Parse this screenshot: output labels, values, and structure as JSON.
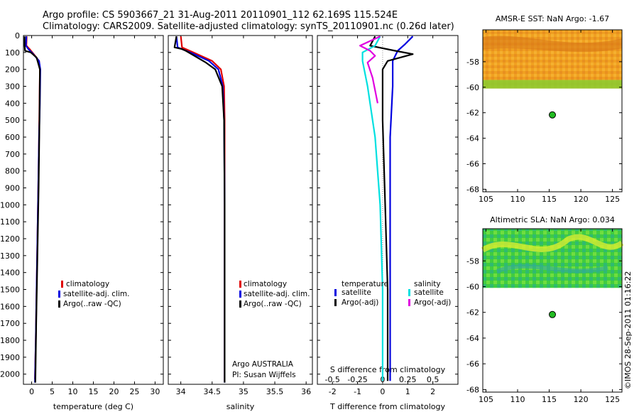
{
  "header": {
    "line1": "Argo profile: CS 5903667_21 31-Aug-2011 20110901_112 62.169S 115.524E",
    "line2": "Climatology: CARS2009. Satellite-adjusted climatology: synTS_20110901.nc (0.26d later)"
  },
  "colors": {
    "climatology": "#e00000",
    "satellite": "#0000e0",
    "argo": "#000000",
    "sal_satellite": "#00e0e0",
    "sal_argo": "#e000e0",
    "float_marker": "#22bb22"
  },
  "chart_data": [
    {
      "type": "line",
      "name": "temperature-profile",
      "xlabel": "temperature (deg C)",
      "ylabel": "",
      "xlim": [
        -2,
        32
      ],
      "ylim": [
        2060,
        0
      ],
      "xticks": [
        0,
        5,
        10,
        15,
        20,
        25,
        30
      ],
      "yticks": [
        0,
        100,
        200,
        300,
        400,
        500,
        600,
        700,
        800,
        900,
        1000,
        1100,
        1200,
        1300,
        1400,
        1500,
        1600,
        1700,
        1800,
        1900,
        2000
      ],
      "legend": [
        "climatology",
        "satellite-adj. clim.",
        "Argo(..raw -QC)"
      ],
      "series": [
        {
          "name": "climatology",
          "points": [
            [
              -1.2,
              5
            ],
            [
              -1.3,
              60
            ],
            [
              -0.5,
              80
            ],
            [
              0.5,
              110
            ],
            [
              1.8,
              150
            ],
            [
              2.0,
              200
            ],
            [
              1.9,
              400
            ],
            [
              1.8,
              600
            ],
            [
              1.6,
              900
            ],
            [
              1.4,
              1200
            ],
            [
              1.2,
              1500
            ],
            [
              1.0,
              1800
            ],
            [
              0.8,
              2030
            ]
          ]
        },
        {
          "name": "satellite-adj. clim.",
          "points": [
            [
              -1.3,
              5
            ],
            [
              -1.4,
              60
            ],
            [
              -0.8,
              80
            ],
            [
              0.4,
              110
            ],
            [
              1.8,
              150
            ],
            [
              2.1,
              200
            ],
            [
              2.0,
              400
            ],
            [
              1.8,
              600
            ],
            [
              1.6,
              900
            ],
            [
              1.4,
              1200
            ],
            [
              1.2,
              1500
            ],
            [
              1.0,
              1800
            ],
            [
              0.8,
              2050
            ]
          ]
        },
        {
          "name": "Argo(..raw -QC)",
          "points": [
            [
              -1.7,
              5
            ],
            [
              -1.7,
              60
            ],
            [
              -1.6,
              90
            ],
            [
              -0.2,
              100
            ],
            [
              1.2,
              130
            ],
            [
              2.0,
              200
            ],
            [
              1.9,
              500
            ],
            [
              1.7,
              900
            ],
            [
              1.4,
              1300
            ],
            [
              1.1,
              1700
            ],
            [
              0.9,
              2050
            ]
          ]
        }
      ]
    },
    {
      "type": "line",
      "name": "salinity-profile",
      "xlabel": "salinity",
      "ylabel": "",
      "xlim": [
        33.8,
        36.1
      ],
      "ylim": [
        2060,
        0
      ],
      "xticks": [
        34,
        34.5,
        35,
        35.5,
        36
      ],
      "xticklabels": [
        "34",
        "34.5",
        "35",
        "35.5",
        "36"
      ],
      "legend": [
        "climatology",
        "satellite-adj. clim.",
        "Argo(..raw -QC)"
      ],
      "annotation": [
        "Argo AUSTRALIA",
        "PI: Susan Wijffels"
      ],
      "series": [
        {
          "name": "climatology",
          "points": [
            [
              34.0,
              5
            ],
            [
              34.02,
              70
            ],
            [
              34.2,
              100
            ],
            [
              34.5,
              150
            ],
            [
              34.64,
              200
            ],
            [
              34.69,
              300
            ],
            [
              34.7,
              500
            ],
            [
              34.7,
              1000
            ],
            [
              34.7,
              1500
            ],
            [
              34.7,
              2040
            ]
          ]
        },
        {
          "name": "satellite-adj. clim.",
          "points": [
            [
              33.93,
              5
            ],
            [
              33.95,
              70
            ],
            [
              34.15,
              100
            ],
            [
              34.45,
              150
            ],
            [
              34.6,
              200
            ],
            [
              34.67,
              300
            ],
            [
              34.69,
              500
            ],
            [
              34.7,
              1000
            ],
            [
              34.7,
              1500
            ],
            [
              34.7,
              2050
            ]
          ]
        },
        {
          "name": "Argo(..raw -QC)",
          "points": [
            [
              33.93,
              5
            ],
            [
              33.9,
              70
            ],
            [
              34.02,
              80
            ],
            [
              34.08,
              90
            ],
            [
              34.4,
              160
            ],
            [
              34.55,
              200
            ],
            [
              34.66,
              300
            ],
            [
              34.69,
              500
            ],
            [
              34.7,
              1000
            ],
            [
              34.7,
              1500
            ],
            [
              34.7,
              2050
            ]
          ]
        }
      ]
    },
    {
      "type": "line",
      "name": "difference-profile",
      "xlabel": "T difference from climatology",
      "top_label": "S difference from climatology",
      "ylabel": "",
      "xlim": [
        -2.6,
        3.0
      ],
      "ylim": [
        2060,
        0
      ],
      "xticks": [
        -2,
        -1,
        0,
        1,
        2
      ],
      "xticklabels": [
        "-2",
        "-1",
        "0",
        "1",
        "2"
      ],
      "sticks_positions": [
        -2,
        -1,
        0,
        1,
        2
      ],
      "sticklabels": [
        "-0.5",
        "-0.25",
        "0",
        "0.25",
        "0.5"
      ],
      "legend_temperature_title": "temperature",
      "legend_salinity_title": "salinity",
      "legend_temperature": [
        "satellite",
        "Argo(-adj)"
      ],
      "legend_salinity": [
        "satellite",
        "Argo(-adj)"
      ],
      "series": [
        {
          "name": "temperature satellite",
          "points": [
            [
              1.2,
              5
            ],
            [
              0.9,
              50
            ],
            [
              0.6,
              90
            ],
            [
              0.4,
              150
            ],
            [
              0.4,
              300
            ],
            [
              0.3,
              600
            ],
            [
              0.3,
              1000
            ],
            [
              0.3,
              1500
            ],
            [
              0.3,
              2040
            ]
          ]
        },
        {
          "name": "temperature Argo(-adj)",
          "points": [
            [
              -0.3,
              5
            ],
            [
              -0.5,
              60
            ],
            [
              0.5,
              90
            ],
            [
              1.2,
              110
            ],
            [
              0.2,
              150
            ],
            [
              0.0,
              200
            ],
            [
              0.0,
              500
            ],
            [
              0.1,
              1000
            ],
            [
              0.2,
              1500
            ],
            [
              0.2,
              2040
            ]
          ]
        },
        {
          "name": "salinity satellite",
          "points": [
            [
              -0.1,
              5
            ],
            [
              -0.3,
              60
            ],
            [
              -0.8,
              100
            ],
            [
              -0.8,
              150
            ],
            [
              -0.6,
              300
            ],
            [
              -0.3,
              600
            ],
            [
              -0.1,
              1000
            ],
            [
              0.0,
              1500
            ],
            [
              0.0,
              2040
            ]
          ]
        },
        {
          "name": "salinity Argo(-adj)",
          "points": [
            [
              -0.1,
              5
            ],
            [
              -0.9,
              60
            ],
            [
              -0.5,
              90
            ],
            [
              -0.3,
              120
            ],
            [
              -0.6,
              160
            ],
            [
              -0.4,
              250
            ],
            [
              -0.2,
              400
            ]
          ]
        }
      ]
    },
    {
      "type": "heatmap",
      "name": "sst-map",
      "title": "AMSR-E SST: NaN Argo: -1.67",
      "xlim": [
        104.5,
        126.5
      ],
      "ylim": [
        -68.2,
        -55.5
      ],
      "xticks": [
        105,
        110,
        115,
        120,
        125
      ],
      "yticks": [
        -58,
        -60,
        -62,
        -64,
        -66,
        -68
      ],
      "data_lat_min": -60.1,
      "float_position": [
        115.5,
        -62.169
      ]
    },
    {
      "type": "heatmap",
      "name": "sla-map",
      "title": "Altimetric SLA: NaN Argo: 0.034",
      "xlim": [
        104.5,
        126.5
      ],
      "ylim": [
        -68.2,
        -55.5
      ],
      "xticks": [
        105,
        110,
        115,
        120,
        125
      ],
      "yticks": [
        -58,
        -60,
        -62,
        -64,
        -66,
        -68
      ],
      "data_lat_min": -60.1,
      "float_position": [
        115.5,
        -62.169
      ]
    }
  ],
  "credit": "©IMOS 28-Sep-2011 01:16:22"
}
